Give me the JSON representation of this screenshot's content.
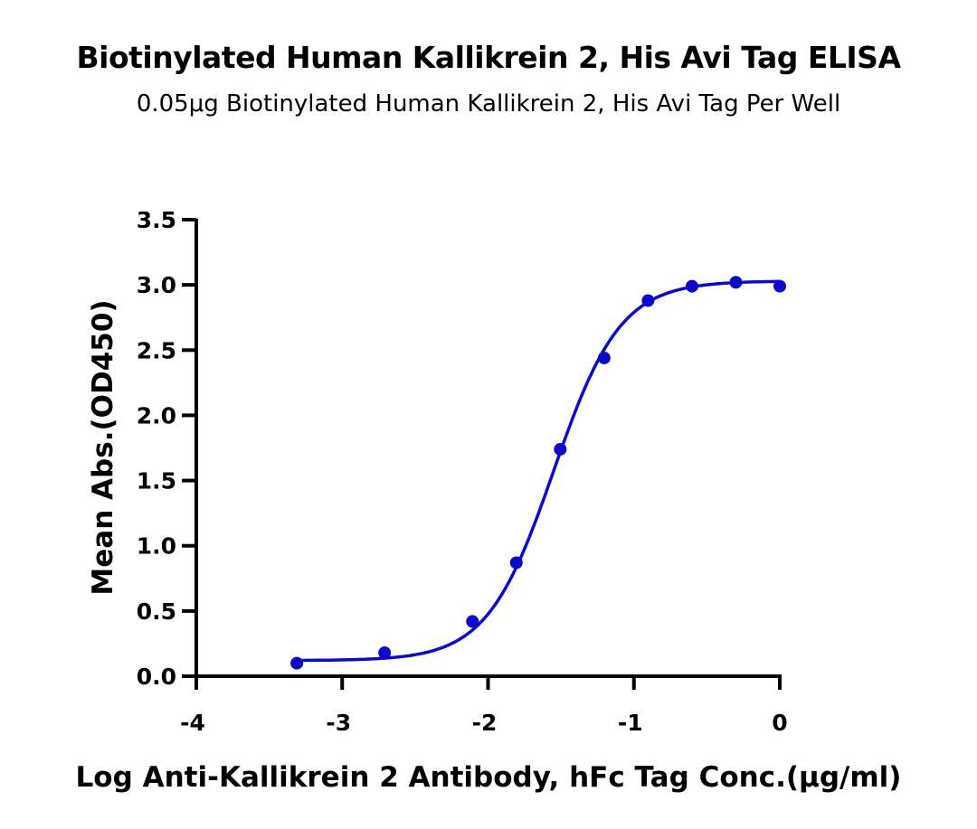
{
  "chart_data": {
    "type": "scatter",
    "title": "Biotinylated Human Kallikrein 2, His Avi Tag ELISA",
    "subtitle": "0.05μg Biotinylated Human Kallikrein 2, His Avi Tag Per Well",
    "xlabel": "Log Anti-Kallikrein 2 Antibody, hFc Tag Conc.(μg/ml)",
    "ylabel": "Mean Abs.(OD450)",
    "xlim": [
      -4,
      0
    ],
    "ylim": [
      0,
      3.5
    ],
    "xticks": [
      "-4",
      "-3",
      "-2",
      "-1",
      "0"
    ],
    "yticks": [
      "0.0",
      "0.5",
      "1.0",
      "1.5",
      "2.0",
      "2.5",
      "3.0",
      "3.5"
    ],
    "grid": false,
    "color": "#0a0ac8",
    "series": [
      {
        "x": [
          -3.311,
          -2.709,
          -2.107,
          -1.806,
          -1.505,
          -1.204,
          -0.903,
          -0.602,
          -0.301,
          0
        ],
        "y": [
          0.1,
          0.18,
          0.42,
          0.87,
          1.74,
          2.44,
          2.88,
          2.99,
          3.02,
          2.99
        ]
      }
    ],
    "fit_curve": {
      "model": "4PL",
      "bottom": 0.12,
      "top": 3.03,
      "log_ec50": -1.55,
      "hill": 1.9
    }
  }
}
